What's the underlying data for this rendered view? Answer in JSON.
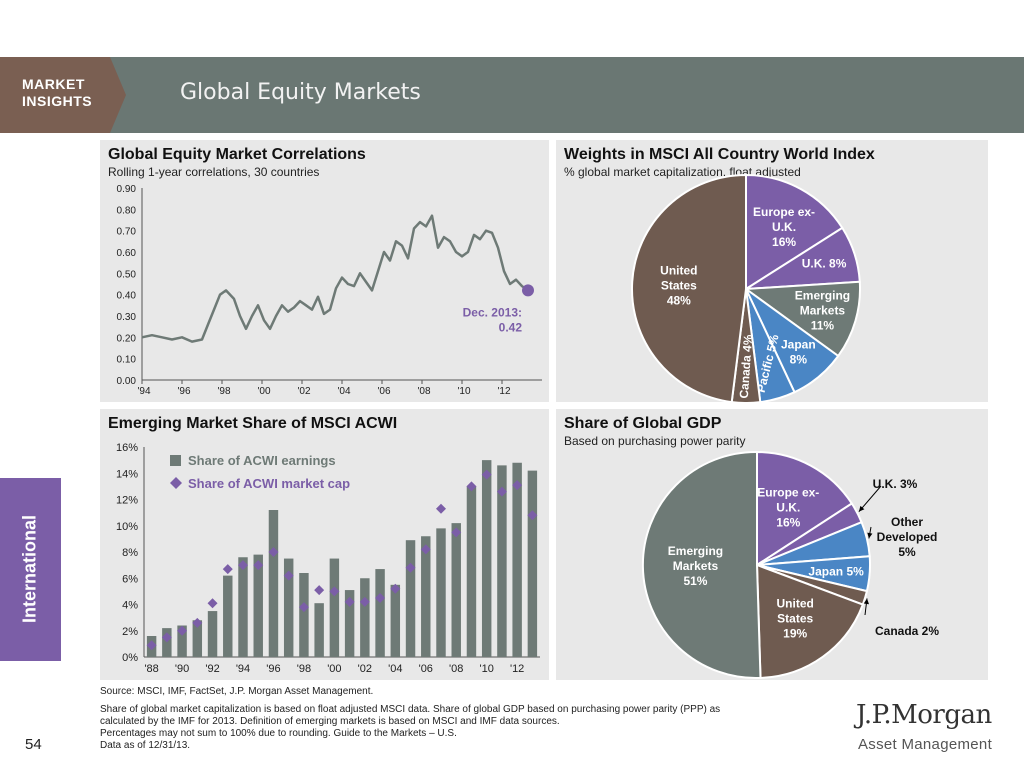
{
  "header": {
    "brand_line1": "MARKET",
    "brand_line2": "INSIGHTS",
    "title": "Global Equity Markets"
  },
  "side_tab": "International",
  "page_number": "54",
  "logo": {
    "name": "J.P.Morgan",
    "sub": "Asset Management"
  },
  "footnotes": {
    "source": "Source: MSCI, IMF, FactSet, J.P. Morgan Asset Management.",
    "lines": [
      "Share of global market capitalization is based on float adjusted MSCI data. Share of global GDP based on purchasing power parity (PPP) as",
      "calculated by the IMF for 2013. Definition of emerging markets is based on MSCI and IMF data sources.",
      "Percentages may not sum to 100% due to rounding. Guide to the Markets – U.S.",
      "Data as of 12/31/13."
    ]
  },
  "colors": {
    "line": "#6e7a76",
    "bar": "#6e7a76",
    "marker": "#7b5ea7",
    "brown": "#6f5b50",
    "purple": "#7b5ea7",
    "gray": "#6e7a76",
    "blue": "#4a86c5",
    "panel": "#e8e8e8"
  },
  "chart_data": [
    {
      "id": "correlations",
      "type": "line",
      "title": "Global Equity Market Correlations",
      "subtitle": "Rolling 1-year correlations, 30 countries",
      "x_tick_labels": [
        "'94",
        "'96",
        "'98",
        "'00",
        "'02",
        "'04",
        "'06",
        "'08",
        "'10",
        "'12"
      ],
      "x_ticks": [
        1994,
        1996,
        1998,
        2000,
        2002,
        2004,
        2006,
        2008,
        2010,
        2012
      ],
      "xlim": [
        1994,
        2014
      ],
      "y_tick_labels": [
        "0.00",
        "0.10",
        "0.20",
        "0.30",
        "0.40",
        "0.50",
        "0.60",
        "0.70",
        "0.80",
        "0.90"
      ],
      "ylim": [
        0,
        0.9
      ],
      "series": [
        {
          "x": [
            1994.0,
            1994.5,
            1995.0,
            1995.5,
            1996.0,
            1996.5,
            1997.0,
            1997.3,
            1997.6,
            1997.9,
            1998.2,
            1998.6,
            1998.9,
            1999.2,
            1999.5,
            1999.8,
            2000.1,
            2000.4,
            2000.7,
            2001.0,
            2001.3,
            2001.6,
            2001.9,
            2002.2,
            2002.5,
            2002.8,
            2003.1,
            2003.4,
            2003.7,
            2004.0,
            2004.3,
            2004.6,
            2004.9,
            2005.2,
            2005.5,
            2005.8,
            2006.1,
            2006.4,
            2006.7,
            2007.0,
            2007.3,
            2007.6,
            2007.9,
            2008.2,
            2008.5,
            2008.8,
            2009.1,
            2009.4,
            2009.7,
            2010.0,
            2010.3,
            2010.6,
            2010.9,
            2011.2,
            2011.5,
            2011.8,
            2012.1,
            2012.4,
            2012.7,
            2013.0,
            2013.3
          ],
          "y": [
            0.2,
            0.21,
            0.2,
            0.19,
            0.2,
            0.18,
            0.19,
            0.26,
            0.33,
            0.4,
            0.42,
            0.38,
            0.3,
            0.24,
            0.3,
            0.35,
            0.28,
            0.24,
            0.3,
            0.35,
            0.32,
            0.34,
            0.37,
            0.35,
            0.33,
            0.39,
            0.31,
            0.33,
            0.43,
            0.48,
            0.45,
            0.44,
            0.5,
            0.46,
            0.42,
            0.51,
            0.6,
            0.56,
            0.65,
            0.63,
            0.57,
            0.71,
            0.74,
            0.72,
            0.77,
            0.62,
            0.67,
            0.65,
            0.6,
            0.58,
            0.6,
            0.68,
            0.66,
            0.7,
            0.69,
            0.62,
            0.51,
            0.45,
            0.47,
            0.44,
            0.42
          ]
        }
      ],
      "annotation": {
        "label_line1": "Dec. 2013:",
        "label_line2": "0.42",
        "x": 2013.3,
        "y": 0.42
      }
    },
    {
      "id": "msci-weights",
      "type": "pie",
      "title": "Weights in MSCI All Country World Index",
      "subtitle": "% global market capitalization, float adjusted",
      "slices": [
        {
          "label": "Europe ex-U.K.",
          "label_lines": [
            "Europe ex-",
            "U.K.",
            "16%"
          ],
          "value": 16,
          "color": "#7b5ea7"
        },
        {
          "label": "U.K.",
          "label_lines": [
            "U.K. 8%"
          ],
          "value": 8,
          "color": "#7b5ea7"
        },
        {
          "label": "Emerging Markets",
          "label_lines": [
            "Emerging",
            "Markets",
            "11%"
          ],
          "value": 11,
          "color": "#6e7a76"
        },
        {
          "label": "Japan",
          "label_lines": [
            "Japan",
            "8%"
          ],
          "value": 8,
          "color": "#4a86c5"
        },
        {
          "label": "Pacific",
          "label_lines": [
            "Pacific 5%"
          ],
          "value": 5,
          "color": "#4a86c5"
        },
        {
          "label": "Canada",
          "label_lines": [
            "Canada 4%"
          ],
          "value": 4,
          "color": "#6f5b50"
        },
        {
          "label": "United States",
          "label_lines": [
            "United",
            "States",
            "48%"
          ],
          "value": 48,
          "color": "#6f5b50"
        }
      ]
    },
    {
      "id": "em-share",
      "type": "bar",
      "title": "Emerging Market Share of MSCI ACWI",
      "categories": [
        "1988",
        "1989",
        "1990",
        "1991",
        "1992",
        "1993",
        "1994",
        "1995",
        "1996",
        "1997",
        "1998",
        "1999",
        "2000",
        "2001",
        "2002",
        "2003",
        "2004",
        "2005",
        "2006",
        "2007",
        "2008",
        "2009",
        "2010",
        "2011",
        "2012",
        "2013"
      ],
      "x_tick_labels": [
        "'88",
        "'90",
        "'92",
        "'94",
        "'96",
        "'98",
        "'00",
        "'02",
        "'04",
        "'06",
        "'08",
        "'10",
        "'12"
      ],
      "x_tick_every": 2,
      "y_tick_labels": [
        "0%",
        "2%",
        "4%",
        "6%",
        "8%",
        "10%",
        "12%",
        "14%",
        "16%"
      ],
      "ylim": [
        0,
        16
      ],
      "series": [
        {
          "name": "Share of ACWI earnings",
          "kind": "bar",
          "values": [
            1.6,
            2.2,
            2.4,
            2.8,
            3.5,
            6.2,
            7.6,
            7.8,
            11.2,
            7.5,
            6.4,
            4.1,
            7.5,
            5.1,
            6.0,
            6.7,
            5.5,
            8.9,
            9.2,
            9.8,
            10.2,
            13.0,
            15.0,
            14.6,
            14.8,
            14.2
          ]
        },
        {
          "name": "Share of ACWI market cap",
          "kind": "marker",
          "values": [
            0.9,
            1.5,
            2.0,
            2.6,
            4.1,
            6.7,
            7.0,
            7.0,
            8.0,
            6.2,
            3.8,
            5.1,
            5.0,
            4.2,
            4.2,
            4.5,
            5.2,
            6.8,
            8.2,
            11.3,
            9.5,
            13.0,
            13.9,
            12.6,
            13.1,
            10.8
          ]
        }
      ],
      "legend": "top-left"
    },
    {
      "id": "gdp-share",
      "type": "pie",
      "title": "Share of Global GDP",
      "subtitle": "Based on purchasing power parity",
      "slices": [
        {
          "label": "Europe ex-U.K.",
          "label_lines": [
            "Europe ex-",
            "U.K.",
            "16%"
          ],
          "value": 16,
          "color": "#7b5ea7"
        },
        {
          "label": "U.K.",
          "label_lines": [
            "U.K. 3%"
          ],
          "value": 3,
          "color": "#7b5ea7"
        },
        {
          "label": "Other Developed",
          "label_lines": [
            "Other",
            "Developed",
            "5%"
          ],
          "value": 5,
          "color": "#4a86c5"
        },
        {
          "label": "Japan",
          "label_lines": [
            "Japan 5%"
          ],
          "value": 5,
          "color": "#4a86c5"
        },
        {
          "label": "Canada",
          "label_lines": [
            "Canada 2%"
          ],
          "value": 2,
          "color": "#6f5b50"
        },
        {
          "label": "United States",
          "label_lines": [
            "United",
            "States",
            "19%"
          ],
          "value": 19,
          "color": "#6f5b50"
        },
        {
          "label": "Emerging Markets",
          "label_lines": [
            "Emerging",
            "Markets",
            "51%"
          ],
          "value": 51,
          "color": "#6e7a76"
        }
      ]
    }
  ]
}
